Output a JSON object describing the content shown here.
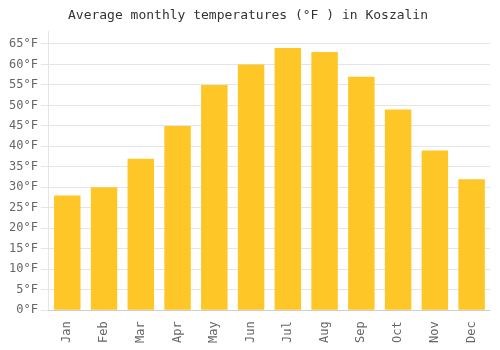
{
  "chart_data": {
    "type": "bar",
    "title": "Average monthly temperatures (°F ) in Koszalin",
    "categories": [
      "Jan",
      "Feb",
      "Mar",
      "Apr",
      "May",
      "Jun",
      "Jul",
      "Aug",
      "Sep",
      "Oct",
      "Nov",
      "Dec"
    ],
    "values": [
      28,
      30,
      37,
      45,
      55,
      60,
      64,
      63,
      57,
      49,
      39,
      32
    ],
    "color": "#FFC627",
    "ylim": [
      0,
      68
    ],
    "yticks": [
      {
        "value": 0,
        "label": "0°F"
      },
      {
        "value": 5,
        "label": "5°F"
      },
      {
        "value": 10,
        "label": "10°F"
      },
      {
        "value": 15,
        "label": "15°F"
      },
      {
        "value": 20,
        "label": "20°F"
      },
      {
        "value": 25,
        "label": "25°F"
      },
      {
        "value": 30,
        "label": "30°F"
      },
      {
        "value": 35,
        "label": "35°F"
      },
      {
        "value": 40,
        "label": "40°F"
      },
      {
        "value": 45,
        "label": "45°F"
      },
      {
        "value": 50,
        "label": "50°F"
      },
      {
        "value": 55,
        "label": "55°F"
      },
      {
        "value": 60,
        "label": "60°F"
      },
      {
        "value": 65,
        "label": "65°F"
      }
    ],
    "grid": true
  }
}
